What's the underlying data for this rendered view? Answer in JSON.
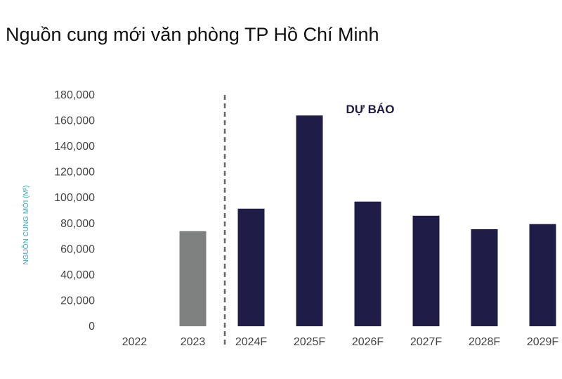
{
  "title": "Nguồn cung mới văn phòng TP Hồ Chí Minh",
  "chart_data": {
    "type": "bar",
    "title": "Nguồn cung mới văn phòng TP Hồ Chí Minh",
    "ylabel": "NGUỒN CUNG MỚI (M²)",
    "xlabel": "",
    "categories": [
      "2022",
      "2023",
      "2024F",
      "2025F",
      "2026F",
      "2027F",
      "2028F",
      "2029F"
    ],
    "values": [
      0,
      74000,
      91500,
      164000,
      97000,
      86000,
      75500,
      79500
    ],
    "ylim": [
      0,
      180000
    ],
    "yticks": [
      "0",
      "20,000",
      "40,000",
      "60,000",
      "80,000",
      "100,000",
      "120,000",
      "140,000",
      "160,000",
      "180,000"
    ],
    "grid": false,
    "forecast_label": "DỰ BÁO",
    "colors": {
      "actual": "#7f8180",
      "forecast": "#201c48",
      "divider": "#666666",
      "ylabel": "#2aa8b4"
    }
  }
}
